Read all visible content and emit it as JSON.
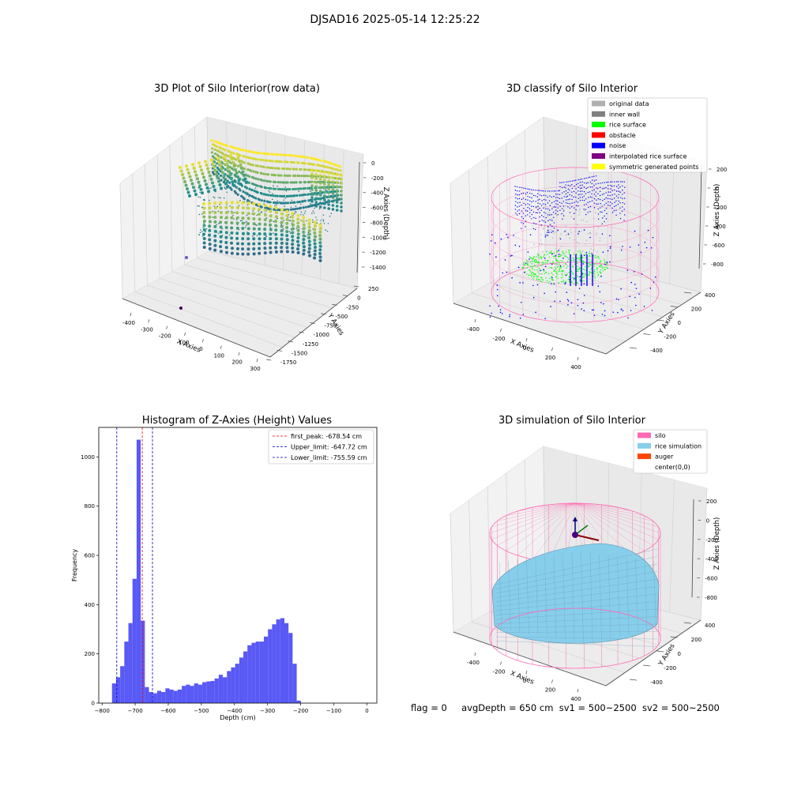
{
  "figure_title": "DJSAD16 2025-05-14 12:25:22",
  "footer": {
    "flag": "flag = 0",
    "avg_depth": "avgDepth = 650 cm",
    "sv1": "sv1 = 500~2500",
    "sv2": "sv2 = 500~2500"
  },
  "colors": {
    "hist_bar": "#5050f5",
    "peak_line": "#ff0000",
    "limit_line": "#0000cc",
    "silo": "#ff69b4",
    "rice": "#87ceeb",
    "auger": "#ff4500",
    "noise": "#0000ff",
    "rice_surface": "#00ff00",
    "viridis_low": "#3b528b",
    "viridis_mid": "#21918c",
    "viridis_high": "#fde725"
  },
  "chart_data": [
    {
      "type": "scatter",
      "projection": "3d",
      "title": "3D Plot of Silo Interior(row data)",
      "xlabel": "X Axies",
      "ylabel": "Y Axies",
      "zlabel": "Z Axies (Depth)",
      "x_ticks": [
        "-400",
        "-300",
        "-200",
        "-100",
        "0",
        "100",
        "200",
        "300"
      ],
      "y_ticks": [
        "250",
        "0",
        "-250",
        "-500",
        "-750",
        "-1000",
        "-1250",
        "-1500",
        "-1750"
      ],
      "z_ticks": [
        "0",
        "-200",
        "-400",
        "-600",
        "-800",
        "-1000",
        "-1200",
        "-1400"
      ],
      "colormap": "viridis"
    },
    {
      "type": "scatter",
      "projection": "3d",
      "title": "3D classify of Silo Interior",
      "xlabel": "X Axies",
      "ylabel": "Y Axies",
      "zlabel": "Z Axies (Depth)",
      "x_ticks": [
        "-400",
        "-200",
        "0",
        "200",
        "400"
      ],
      "y_ticks": [
        "400",
        "200",
        "0",
        "-200",
        "-400"
      ],
      "z_ticks": [
        "200",
        "0",
        "-200",
        "-400",
        "-600",
        "-800"
      ],
      "legend_position": "top-right",
      "legend": [
        {
          "label": "original data",
          "color": "#b0b0b0"
        },
        {
          "label": "inner wall",
          "color": "#808080"
        },
        {
          "label": "rice surface",
          "color": "#00ff00"
        },
        {
          "label": "obstacle",
          "color": "#ff0000"
        },
        {
          "label": "noise",
          "color": "#0000ff"
        },
        {
          "label": "interpolated rice surface",
          "color": "#800080"
        },
        {
          "label": "symmetric generated points",
          "color": "#ffff00"
        }
      ]
    },
    {
      "type": "bar",
      "title": "Histogram of Z-Axies (Height) Values",
      "xlabel": "Depth (cm)",
      "ylabel": "Frequency",
      "xlim": [
        -810,
        30
      ],
      "ylim": [
        0,
        1120
      ],
      "x_ticks": [
        -800,
        -700,
        -600,
        -500,
        -400,
        -300,
        -200,
        -100,
        0
      ],
      "y_ticks": [
        0,
        200,
        400,
        600,
        800,
        1000
      ],
      "bin_width": 12.4,
      "bin_start": -770,
      "values": [
        80,
        105,
        150,
        250,
        325,
        505,
        1070,
        335,
        65,
        45,
        40,
        50,
        45,
        60,
        55,
        50,
        55,
        70,
        75,
        70,
        80,
        75,
        85,
        88,
        90,
        100,
        115,
        105,
        130,
        145,
        160,
        185,
        210,
        235,
        245,
        250,
        250,
        270,
        300,
        320,
        340,
        345,
        325,
        285,
        160,
        10
      ],
      "vlines": [
        {
          "label": "first_peak: -678.54 cm",
          "x": -678.54,
          "color": "#ff0000"
        },
        {
          "label": "Upper_limit: -647.72 cm",
          "x": -647.72,
          "color": "#0000cc"
        },
        {
          "label": "Lower_limit: -755.59 cm",
          "x": -755.59,
          "color": "#0000cc"
        }
      ],
      "legend_position": "top-right",
      "grid": false
    },
    {
      "type": "surface",
      "projection": "3d",
      "title": "3D simulation of Silo Interior",
      "xlabel": "X Axies",
      "ylabel": "Y Axies",
      "zlabel": "Z Axies (Depth)",
      "x_ticks": [
        "-400",
        "-200",
        "0",
        "200",
        "400"
      ],
      "y_ticks": [
        "400",
        "200",
        "0",
        "-200",
        "-400"
      ],
      "z_ticks": [
        "200",
        "0",
        "-200",
        "-400",
        "-600",
        "-800"
      ],
      "legend_position": "top-right",
      "legend": [
        {
          "label": "silo",
          "color": "#ff69b4"
        },
        {
          "label": "rice simulation",
          "color": "#87ceeb"
        },
        {
          "label": "auger",
          "color": "#ff4500"
        },
        {
          "label": "center(0,0)",
          "color": "#ffffff"
        }
      ]
    }
  ]
}
